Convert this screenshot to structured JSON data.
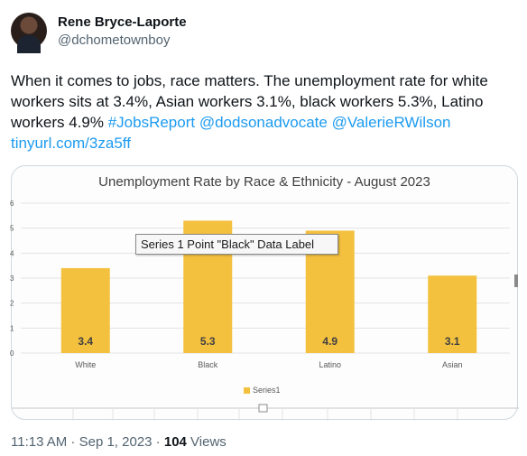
{
  "author": {
    "name": "Rene Bryce-Laporte",
    "handle": "@dchometownboy",
    "avatar_icon": "profile-photo"
  },
  "tweet": {
    "text": "When it comes to jobs, race matters. The unemployment rate  for white workers sits at 3.4%, Asian workers 3.1%, black workers 5.3%, Latino workers 4.9% ",
    "hashtag": "#JobsReport",
    "mention1": "@dodsonadvocate",
    "mention2": "@ValerieRWilson",
    "link": "tinyurl.com/3za5ff"
  },
  "tooltip": "Series 1 Point \"Black\" Data Label",
  "footer": {
    "time": "11:13 AM",
    "separator": " · ",
    "date": "Sep 1, 2023",
    "views_count": "104",
    "views_label": " Views"
  },
  "colors": {
    "bar": "#f4c13f",
    "link": "#1d9bf0"
  },
  "chart_data": {
    "type": "bar",
    "title": "Unemployment Rate by Race & Ethnicity - August 2023",
    "categories": [
      "White",
      "Black",
      "Latino",
      "Asian"
    ],
    "series": [
      {
        "name": "Series1",
        "values": [
          3.4,
          5.3,
          4.9,
          3.1
        ]
      }
    ],
    "data_labels": [
      "3.4",
      "5.3",
      "4.9",
      "3.1"
    ],
    "yticks": [
      "0",
      "1",
      "2",
      "3",
      "4",
      "5",
      "6"
    ],
    "ylim": [
      0,
      6
    ],
    "grid": true,
    "legend": "bottom"
  }
}
